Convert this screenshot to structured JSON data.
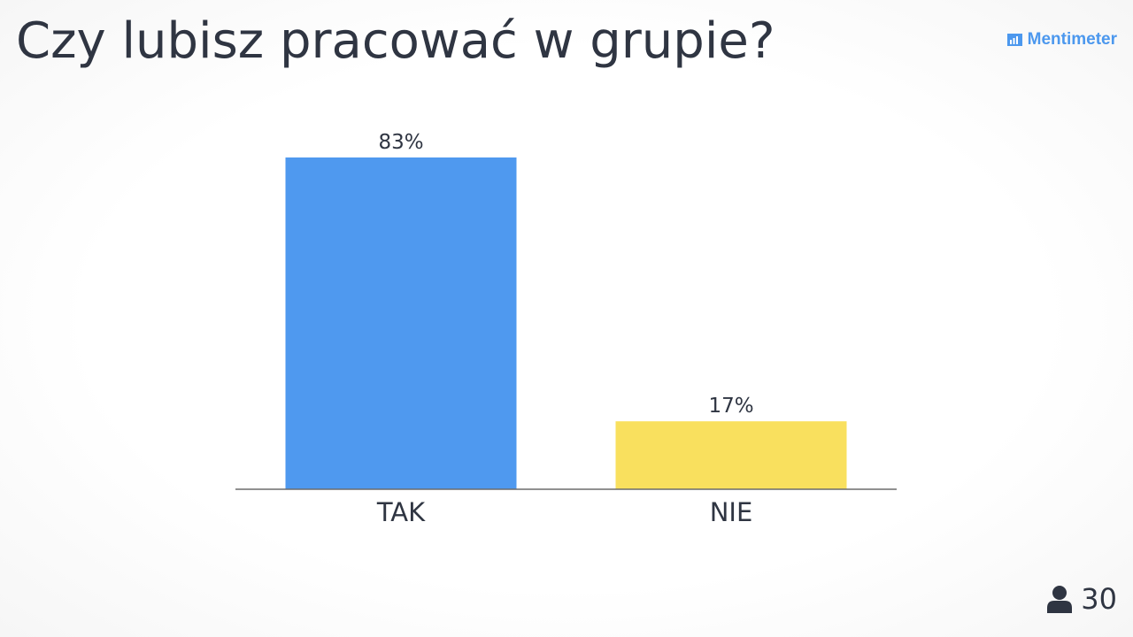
{
  "slide": {
    "title": "Czy lubisz pracować w grupie?",
    "brand": "Mentimeter",
    "participants": "30"
  },
  "colors": {
    "text": "#2f3542",
    "brand": "#4c98ee",
    "axis": "#6b6b6b"
  },
  "chart_data": {
    "type": "bar",
    "categories": [
      "TAK",
      "NIE"
    ],
    "values": [
      83,
      17
    ],
    "value_labels": [
      "83%",
      "17%"
    ],
    "colors": [
      "#4f99ef",
      "#f9e05e"
    ],
    "ylim": [
      0,
      83
    ],
    "grid": false,
    "legend": "none",
    "title": "",
    "xlabel": "",
    "ylabel": ""
  }
}
